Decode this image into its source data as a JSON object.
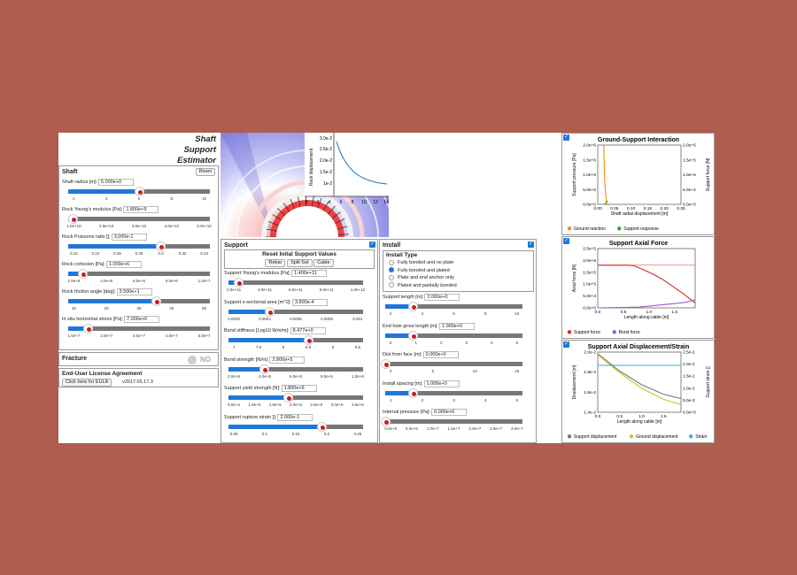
{
  "app": {
    "title_lines": [
      "Shaft",
      "Support",
      "Estimator"
    ]
  },
  "shaft": {
    "title": "Shaft",
    "reset_label": "Reset",
    "params": [
      {
        "label": "Shaft radius [m]:",
        "value": "5.000e+0",
        "pct": 0.5,
        "ticks": [
          "2",
          "4",
          "6",
          "8",
          "10"
        ]
      },
      {
        "label": "Rock Young's modulus [Pa]:",
        "value": "1.800e+9",
        "pct": 0.03,
        "ticks": [
          "1.0e+10",
          "2.0e+10",
          "3.0e+10",
          "4.0e+10",
          "5.0e+10"
        ]
      },
      {
        "label": "Rock Poissons ratio []:",
        "value": "3.000e-1",
        "pct": 0.65,
        "ticks": [
          "0.22",
          "0.24",
          "0.26",
          "0.28",
          "0.3",
          "0.32",
          "0.34"
        ]
      },
      {
        "label": "Rock cohesion [Pa]:",
        "value": "1.000e+6",
        "pct": 0.1,
        "ticks": [
          "2.0e+6",
          "4.0e+6",
          "6.0e+6",
          "8.0e+6",
          "1.0e+7"
        ]
      },
      {
        "label": "Rock friction angle [deg]:",
        "value": "3.500e+1",
        "pct": 0.62,
        "ticks": [
          "10",
          "20",
          "30",
          "40",
          "50"
        ]
      },
      {
        "label": "In situ horizontal stress [Pa]:",
        "value": "7.000e+6",
        "pct": 0.14,
        "ticks": [
          "1.0e+7",
          "2.0e+7",
          "3.0e+7",
          "4.0e+7",
          "5.0e+7"
        ]
      }
    ]
  },
  "fracture": {
    "title": "Fracture",
    "toggle": "NO"
  },
  "eula": {
    "title": "End-User License Agreement",
    "button": "Click here for EULA",
    "version": "v2017.05.17.3"
  },
  "top_plot": {
    "y_ticks": [
      "3.0e-2",
      "2.5e-2",
      "2.0e-2",
      "1.5e-2",
      "1e-2",
      "5.0e-3"
    ],
    "y_label": "Rock displacement",
    "x_ticks": [
      "0",
      "2",
      "4",
      "6",
      "8",
      "10",
      "12",
      "14"
    ]
  },
  "support": {
    "title": "Support",
    "reset_title": "Reset Inital Support Values",
    "buttons": [
      "Rebar",
      "Split Set",
      "Cable"
    ],
    "params": [
      {
        "label": "Support Young's modulus [Pa]:",
        "value": "1.400e+11",
        "pct": 0.07,
        "ticks": [
          "2.0e+11",
          "4.0e+11",
          "6.0e+11",
          "8.0e+11",
          "1.0e+12"
        ]
      },
      {
        "label": "Support x-sectional area [m^2]:",
        "value": "3.800e-4",
        "pct": 0.3,
        "ticks": [
          "0.0002",
          "0.0004",
          "0.0006",
          "0.0008",
          "0.001"
        ]
      },
      {
        "label": "Bond stiffness [Log10 N/m/m]:",
        "value": "8.477e+0",
        "pct": 0.59,
        "ticks": [
          "7",
          "7.5",
          "8",
          "8.5",
          "9",
          "9.5"
        ]
      },
      {
        "label": "Bond strength [N/m]:",
        "value": "2.800e+5",
        "pct": 0.26,
        "ticks": [
          "2.0e+5",
          "4.0e+5",
          "6.0e+5",
          "8.0e+5",
          "1.0e+6"
        ]
      },
      {
        "label": "Support yield strength [N]:",
        "value": "1.800e+5",
        "pct": 0.44,
        "ticks": [
          "5.0e+4",
          "1.0e+5",
          "1.5e+5",
          "2.0e+5",
          "2.5e+5",
          "3.0e+5",
          "3.5e+5"
        ]
      },
      {
        "label": "Support rupture strain []:",
        "value": "2.000e-1",
        "pct": 0.69,
        "ticks": [
          "0.05",
          "0.1",
          "0.15",
          "0.2",
          "0.25"
        ]
      }
    ]
  },
  "install": {
    "title": "Install",
    "type_title": "Install Type",
    "types": [
      "Fully bonded and no plate",
      "Fully bonded and plated",
      "Plate and end anchor only",
      "Plated and partially bonded"
    ],
    "selected": 1,
    "params": [
      {
        "label": "Support length [m]:",
        "value": "2.000e+0",
        "pct": 0.2,
        "ticks": [
          "2",
          "4",
          "6",
          "8",
          "10"
        ]
      },
      {
        "label": "End hole grout length [m]:",
        "value": "1.000e+0",
        "pct": 0.2,
        "ticks": [
          "0",
          "1",
          "2",
          "3",
          "4",
          "5"
        ]
      },
      {
        "label": "Dist from face [m]:",
        "value": "0.000e+0",
        "pct": 0.0,
        "ticks": [
          "0",
          "5",
          "10",
          "15"
        ]
      },
      {
        "label": "Install spacing [m]:",
        "value": "1.000e+0",
        "pct": 0.2,
        "ticks": [
          "1",
          "2",
          "3",
          "4",
          "5"
        ]
      },
      {
        "label": "Internal pressure [Pa]:",
        "value": "0.000e+0",
        "pct": 0.0,
        "ticks": [
          "0.0e+0",
          "5.0e+6",
          "1.0e+7",
          "1.5e+7",
          "2.0e+7",
          "2.5e+7",
          "3.0e+7"
        ]
      }
    ]
  },
  "colors": {
    "blue": "#1f77d8",
    "track": "#777777",
    "knob": "#c81d25"
  },
  "chart_data": [
    {
      "type": "line",
      "title": "Ground-Support Interaction",
      "xlabel": "Shaft radial displacement [m]",
      "ylabel": "Support pressure [Pa]",
      "y2label": "Support force [N]",
      "xlim": [
        0,
        0.25
      ],
      "ylim": [
        0,
        2000000
      ],
      "y2lim": [
        0,
        200000
      ],
      "x_ticks": [
        "0.00",
        "0.05",
        "0.10",
        "0.15",
        "0.20",
        "0.25"
      ],
      "y_ticks": [
        "0.0e+0",
        "5.0e+5",
        "1.0e+6",
        "1.5e+6",
        "2.0e+6"
      ],
      "y2_ticks": [
        "0.0e+0",
        "5.0e+4",
        "1.0e+5",
        "1.5e+5",
        "2.0e+5"
      ],
      "series": [
        {
          "name": "Ground reaction",
          "color": "#ff8c00",
          "axis": "y",
          "x": [
            0.018,
            0.019,
            0.02,
            0.022,
            0.024,
            0.026,
            0.027
          ],
          "y": [
            2000000,
            1500000,
            1000000,
            600000,
            300000,
            100000,
            0
          ]
        },
        {
          "name": "Support response",
          "color": "#3aa33a",
          "axis": "y2",
          "x": [
            0.02,
            0.025,
            0.03
          ],
          "y": [
            0,
            6000,
            12000
          ]
        }
      ]
    },
    {
      "type": "line",
      "title": "Support Axial Force",
      "xlabel": "Length along cable [m]",
      "ylabel": "Axial force [N]",
      "xlim": [
        0,
        1.9
      ],
      "ylim": [
        0,
        250000
      ],
      "x_ticks": [
        "0.0",
        "0.5",
        "1.0",
        "1.5"
      ],
      "y_ticks": [
        "0.0e+0",
        "5.0e+4",
        "1.0e+5",
        "1.5e+5",
        "2.0e+5",
        "2.5e+5"
      ],
      "series": [
        {
          "name": "Support force",
          "color": "#d62728",
          "x": [
            0,
            0.3,
            0.6,
            0.7,
            0.9,
            1.1,
            1.3,
            1.5,
            1.7,
            1.9
          ],
          "y": [
            180000,
            180000,
            180000,
            178000,
            160000,
            140000,
            115000,
            85000,
            55000,
            20000
          ]
        },
        {
          "name": "Bond force",
          "color": "#9a5bd0",
          "x": [
            0,
            0.4,
            0.8,
            1.0,
            1.2,
            1.4,
            1.6,
            1.7,
            1.8,
            1.9
          ],
          "y": [
            0,
            1000,
            3000,
            7000,
            12000,
            16000,
            20000,
            23000,
            28000,
            35000
          ]
        }
      ],
      "reference_line": {
        "y": 180000,
        "color": "#f07070"
      }
    },
    {
      "type": "line",
      "title": "Support Axial Displacement/Strain",
      "xlabel": "Length along cable [m]",
      "ylabel": "Displacement [m]",
      "y2label": "Support strain []",
      "xlim": [
        0,
        1.9
      ],
      "ylim": [
        0.013,
        0.02
      ],
      "y2lim": [
        0,
        0.025
      ],
      "x_ticks": [
        "0.0",
        "0.5",
        "1.0",
        "1.5"
      ],
      "y_ticks": [
        "1.4e-2",
        "1.6e-2",
        "1.8e-2",
        "2.0e-2"
      ],
      "y2_ticks": [
        "0.0e+0",
        "5.0e-3",
        "1.0e-2",
        "1.5e-2",
        "2.0e-2",
        "2.5e-2"
      ],
      "series": [
        {
          "name": "Support displacement",
          "color": "#777777",
          "axis": "y",
          "x": [
            0,
            0.5,
            1.0,
            1.5,
            1.9
          ],
          "y": [
            0.0198,
            0.0178,
            0.0162,
            0.0151,
            0.0146
          ]
        },
        {
          "name": "Ground displacement",
          "color": "#c8c81e",
          "axis": "y",
          "x": [
            0,
            0.5,
            1.0,
            1.5,
            1.9
          ],
          "y": [
            0.0197,
            0.0176,
            0.0158,
            0.0145,
            0.0139
          ]
        },
        {
          "name": "Strain",
          "color": "#2fb3c8",
          "axis": "y2",
          "x": [
            0,
            0.15,
            1.9
          ],
          "y": [
            0.0195,
            0.0195,
            0.0195
          ]
        }
      ]
    }
  ]
}
